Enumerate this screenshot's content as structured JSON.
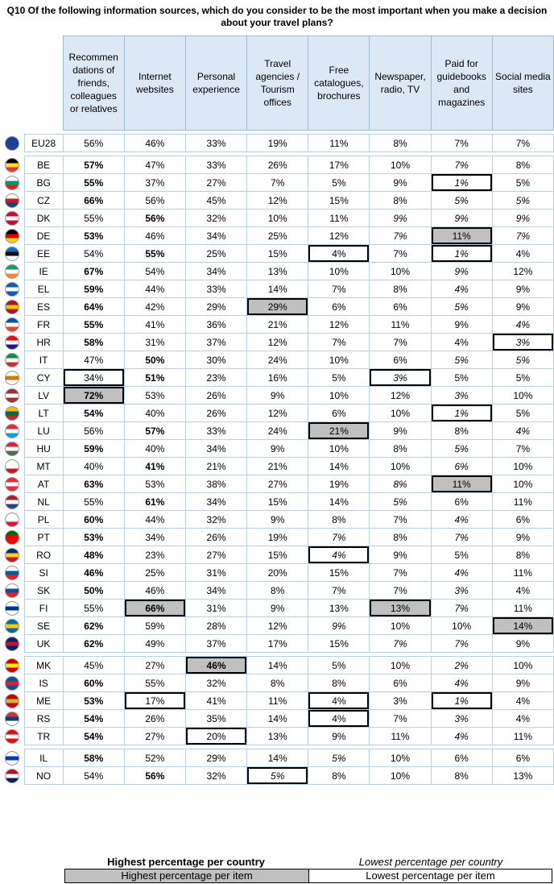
{
  "title": "Q10 Of the following information sources, which do you consider to be the most important when you make a decision about your travel plans?",
  "columns": [
    "Recommen dations of friends, colleagues or relatives",
    "Internet websites",
    "Personal experience",
    "Travel agencies / Tourism offices",
    "Free catalogues, brochures",
    "Newspaper, radio, TV",
    "Paid for guidebooks and magazines",
    "Social media sites"
  ],
  "colors": {
    "header_bg": "#dbe9f7",
    "highlight": "#c0c0c0",
    "border": "#b7cfe7"
  },
  "groups": [
    [
      {
        "code": "EU28",
        "values": [
          "56%",
          "46%",
          "33%",
          "19%",
          "11%",
          "8%",
          "7%",
          "7%"
        ],
        "flag": [
          "#1f3f99",
          "#ffcc00"
        ]
      }
    ],
    [
      {
        "code": "BE",
        "values": [
          "57%",
          "47%",
          "33%",
          "26%",
          "17%",
          "10%",
          "7%",
          "8%"
        ],
        "fmt": [
          "b",
          "",
          "",
          "",
          "",
          "",
          "i",
          ""
        ],
        "flag": [
          "#000000",
          "#fdda24",
          "#ef3340"
        ]
      },
      {
        "code": "BG",
        "values": [
          "55%",
          "37%",
          "27%",
          "7%",
          "5%",
          "9%",
          "1%",
          "5%"
        ],
        "fmt": [
          "b",
          "",
          "",
          "",
          "",
          "",
          "il",
          ""
        ],
        "flag": [
          "#ffffff",
          "#00966e",
          "#d62612"
        ]
      },
      {
        "code": "CZ",
        "values": [
          "66%",
          "56%",
          "45%",
          "12%",
          "15%",
          "8%",
          "5%",
          "5%"
        ],
        "fmt": [
          "b",
          "",
          "",
          "",
          "",
          "",
          "i",
          "i"
        ],
        "flag": [
          "#ffffff",
          "#d7141a",
          "#11457e"
        ]
      },
      {
        "code": "DK",
        "values": [
          "55%",
          "56%",
          "32%",
          "10%",
          "11%",
          "9%",
          "9%",
          "9%"
        ],
        "fmt": [
          "",
          "b",
          "",
          "",
          "",
          "i",
          "i",
          "i"
        ],
        "flag": [
          "#c60c30",
          "#ffffff",
          "#c60c30"
        ]
      },
      {
        "code": "DE",
        "values": [
          "53%",
          "46%",
          "34%",
          "25%",
          "12%",
          "7%",
          "11%",
          "7%"
        ],
        "fmt": [
          "b",
          "",
          "",
          "",
          "",
          "i",
          "h",
          "i"
        ],
        "flag": [
          "#000000",
          "#dd0000",
          "#ffce00"
        ]
      },
      {
        "code": "EE",
        "values": [
          "54%",
          "55%",
          "25%",
          "15%",
          "4%",
          "7%",
          "1%",
          "4%"
        ],
        "fmt": [
          "",
          "b",
          "",
          "",
          "l",
          "",
          "il",
          ""
        ],
        "flag": [
          "#0072ce",
          "#000000",
          "#ffffff"
        ]
      },
      {
        "code": "IE",
        "values": [
          "67%",
          "54%",
          "34%",
          "13%",
          "10%",
          "10%",
          "9%",
          "12%"
        ],
        "fmt": [
          "b",
          "",
          "",
          "",
          "",
          "",
          "i",
          ""
        ],
        "flag": [
          "#169b62",
          "#ffffff",
          "#ff883e"
        ]
      },
      {
        "code": "EL",
        "values": [
          "59%",
          "44%",
          "33%",
          "14%",
          "7%",
          "8%",
          "4%",
          "9%"
        ],
        "fmt": [
          "b",
          "",
          "",
          "",
          "",
          "",
          "i",
          ""
        ],
        "flag": [
          "#0d5eaf",
          "#ffffff",
          "#0d5eaf"
        ]
      },
      {
        "code": "ES",
        "values": [
          "64%",
          "42%",
          "29%",
          "29%",
          "6%",
          "6%",
          "5%",
          "9%"
        ],
        "fmt": [
          "b",
          "",
          "",
          "h",
          "",
          "",
          "i",
          ""
        ],
        "flag": [
          "#aa151b",
          "#f1bf00",
          "#aa151b"
        ]
      },
      {
        "code": "FR",
        "values": [
          "55%",
          "41%",
          "36%",
          "21%",
          "12%",
          "11%",
          "9%",
          "4%"
        ],
        "fmt": [
          "b",
          "",
          "",
          "",
          "",
          "",
          "",
          "i"
        ],
        "flag": [
          "#0055a4",
          "#ffffff",
          "#ef4135"
        ]
      },
      {
        "code": "HR",
        "values": [
          "58%",
          "31%",
          "37%",
          "12%",
          "7%",
          "7%",
          "4%",
          "3%"
        ],
        "fmt": [
          "b",
          "",
          "",
          "",
          "",
          "",
          "",
          "il"
        ],
        "flag": [
          "#ff0000",
          "#ffffff",
          "#171796"
        ]
      },
      {
        "code": "IT",
        "values": [
          "47%",
          "50%",
          "30%",
          "24%",
          "10%",
          "6%",
          "5%",
          "5%"
        ],
        "fmt": [
          "",
          "b",
          "",
          "",
          "",
          "",
          "i",
          "i"
        ],
        "flag": [
          "#009246",
          "#ffffff",
          "#ce2b37"
        ]
      },
      {
        "code": "CY",
        "values": [
          "34%",
          "51%",
          "23%",
          "16%",
          "5%",
          "3%",
          "5%",
          "5%"
        ],
        "fmt": [
          "l",
          "b",
          "",
          "",
          "",
          "il",
          "",
          ""
        ],
        "flag": [
          "#ffffff",
          "#d57800",
          "#ffffff"
        ]
      },
      {
        "code": "LV",
        "values": [
          "72%",
          "53%",
          "26%",
          "9%",
          "10%",
          "12%",
          "3%",
          "10%"
        ],
        "fmt": [
          "bh",
          "",
          "",
          "",
          "",
          "",
          "i",
          ""
        ],
        "flag": [
          "#9e3039",
          "#ffffff",
          "#9e3039"
        ]
      },
      {
        "code": "LT",
        "values": [
          "54%",
          "40%",
          "26%",
          "12%",
          "6%",
          "10%",
          "1%",
          "5%"
        ],
        "fmt": [
          "b",
          "",
          "",
          "",
          "",
          "",
          "il",
          ""
        ],
        "flag": [
          "#fdb913",
          "#006a44",
          "#c1272d"
        ]
      },
      {
        "code": "LU",
        "values": [
          "56%",
          "57%",
          "33%",
          "24%",
          "21%",
          "9%",
          "8%",
          "4%"
        ],
        "fmt": [
          "",
          "b",
          "",
          "",
          "h",
          "",
          "",
          "i"
        ],
        "flag": [
          "#ed2939",
          "#ffffff",
          "#00a1de"
        ]
      },
      {
        "code": "HU",
        "values": [
          "59%",
          "40%",
          "34%",
          "9%",
          "10%",
          "8%",
          "5%",
          "7%"
        ],
        "fmt": [
          "b",
          "",
          "",
          "",
          "",
          "",
          "i",
          ""
        ],
        "flag": [
          "#ce2939",
          "#ffffff",
          "#477050"
        ]
      },
      {
        "code": "MT",
        "values": [
          "40%",
          "41%",
          "21%",
          "21%",
          "14%",
          "10%",
          "6%",
          "10%"
        ],
        "fmt": [
          "",
          "b",
          "",
          "",
          "",
          "",
          "i",
          ""
        ],
        "flag": [
          "#ffffff",
          "#ffffff",
          "#cf142b"
        ]
      },
      {
        "code": "AT",
        "values": [
          "63%",
          "53%",
          "38%",
          "27%",
          "19%",
          "8%",
          "11%",
          "10%"
        ],
        "fmt": [
          "b",
          "",
          "",
          "",
          "",
          "i",
          "h",
          ""
        ],
        "flag": [
          "#ed2939",
          "#ffffff",
          "#ed2939"
        ]
      },
      {
        "code": "NL",
        "values": [
          "55%",
          "61%",
          "34%",
          "15%",
          "14%",
          "5%",
          "6%",
          "11%"
        ],
        "fmt": [
          "",
          "b",
          "",
          "",
          "",
          "i",
          "",
          ""
        ],
        "flag": [
          "#ae1c28",
          "#ffffff",
          "#21468b"
        ]
      },
      {
        "code": "PL",
        "values": [
          "60%",
          "44%",
          "32%",
          "9%",
          "8%",
          "7%",
          "4%",
          "6%"
        ],
        "fmt": [
          "b",
          "",
          "",
          "",
          "",
          "",
          "i",
          ""
        ],
        "flag": [
          "#ffffff",
          "#ffffff",
          "#dc143c"
        ]
      },
      {
        "code": "PT",
        "values": [
          "53%",
          "34%",
          "26%",
          "19%",
          "7%",
          "8%",
          "7%",
          "9%"
        ],
        "fmt": [
          "b",
          "",
          "",
          "",
          "i",
          "",
          "i",
          ""
        ],
        "flag": [
          "#006600",
          "#ff0000",
          "#ff0000"
        ]
      },
      {
        "code": "RO",
        "values": [
          "48%",
          "23%",
          "27%",
          "15%",
          "4%",
          "9%",
          "5%",
          "8%"
        ],
        "fmt": [
          "b",
          "",
          "",
          "",
          "il",
          "",
          "",
          ""
        ],
        "flag": [
          "#002b7f",
          "#fcd116",
          "#ce1126"
        ]
      },
      {
        "code": "SI",
        "values": [
          "46%",
          "25%",
          "31%",
          "20%",
          "15%",
          "7%",
          "4%",
          "11%"
        ],
        "fmt": [
          "b",
          "",
          "",
          "",
          "",
          "",
          "i",
          ""
        ],
        "flag": [
          "#ffffff",
          "#005da4",
          "#ed1c24"
        ]
      },
      {
        "code": "SK",
        "values": [
          "50%",
          "46%",
          "34%",
          "8%",
          "7%",
          "7%",
          "3%",
          "4%"
        ],
        "fmt": [
          "b",
          "",
          "",
          "",
          "",
          "",
          "i",
          ""
        ],
        "flag": [
          "#ffffff",
          "#0b4ea2",
          "#ee1c25"
        ]
      },
      {
        "code": "FI",
        "values": [
          "55%",
          "66%",
          "31%",
          "9%",
          "13%",
          "13%",
          "7%",
          "11%"
        ],
        "fmt": [
          "",
          "bh",
          "",
          "",
          "",
          "h",
          "i",
          ""
        ],
        "flag": [
          "#ffffff",
          "#003580",
          "#ffffff"
        ]
      },
      {
        "code": "SE",
        "values": [
          "62%",
          "59%",
          "28%",
          "12%",
          "9%",
          "10%",
          "10%",
          "14%"
        ],
        "fmt": [
          "b",
          "",
          "",
          "",
          "i",
          "",
          "",
          "h"
        ],
        "flag": [
          "#006aa7",
          "#fecc00",
          "#006aa7"
        ]
      },
      {
        "code": "UK",
        "values": [
          "62%",
          "49%",
          "37%",
          "17%",
          "15%",
          "7%",
          "7%",
          "9%"
        ],
        "fmt": [
          "b",
          "",
          "",
          "",
          "",
          "i",
          "i",
          ""
        ],
        "flag": [
          "#012169",
          "#c8102e",
          "#012169"
        ]
      }
    ],
    [
      {
        "code": "MK",
        "values": [
          "45%",
          "27%",
          "46%",
          "14%",
          "5%",
          "10%",
          "2%",
          "10%"
        ],
        "fmt": [
          "",
          "",
          "bh",
          "",
          "",
          "",
          "i",
          ""
        ],
        "flag": [
          "#d20000",
          "#ffe600",
          "#d20000"
        ]
      },
      {
        "code": "IS",
        "values": [
          "60%",
          "55%",
          "32%",
          "8%",
          "8%",
          "6%",
          "4%",
          "9%"
        ],
        "fmt": [
          "b",
          "",
          "",
          "",
          "",
          "",
          "i",
          ""
        ],
        "flag": [
          "#02529c",
          "#dc1e35",
          "#02529c"
        ]
      },
      {
        "code": "ME",
        "values": [
          "53%",
          "17%",
          "41%",
          "11%",
          "4%",
          "3%",
          "1%",
          "4%"
        ],
        "fmt": [
          "b",
          "l",
          "",
          "",
          "l",
          "",
          "il",
          ""
        ],
        "flag": [
          "#c40308",
          "#d4af37",
          "#c40308"
        ]
      },
      {
        "code": "RS",
        "values": [
          "54%",
          "26%",
          "35%",
          "14%",
          "4%",
          "7%",
          "3%",
          "4%"
        ],
        "fmt": [
          "b",
          "",
          "",
          "",
          "l",
          "",
          "i",
          ""
        ],
        "flag": [
          "#c6363c",
          "#0c4076",
          "#ffffff"
        ]
      },
      {
        "code": "TR",
        "values": [
          "54%",
          "27%",
          "20%",
          "13%",
          "9%",
          "11%",
          "4%",
          "11%"
        ],
        "fmt": [
          "b",
          "",
          "l",
          "",
          "",
          "",
          "i",
          ""
        ],
        "flag": [
          "#e30a17",
          "#ffffff",
          "#e30a17"
        ]
      }
    ],
    [
      {
        "code": "IL",
        "values": [
          "58%",
          "52%",
          "29%",
          "14%",
          "5%",
          "10%",
          "6%",
          "6%"
        ],
        "fmt": [
          "b",
          "",
          "",
          "",
          "i",
          "",
          "",
          ""
        ],
        "flag": [
          "#ffffff",
          "#0038b8",
          "#ffffff"
        ]
      },
      {
        "code": "NO",
        "values": [
          "54%",
          "56%",
          "32%",
          "5%",
          "8%",
          "10%",
          "8%",
          "13%"
        ],
        "fmt": [
          "",
          "b",
          "",
          "il",
          "",
          "",
          "",
          ""
        ],
        "flag": [
          "#ba0c2f",
          "#ffffff",
          "#00205b"
        ]
      }
    ]
  ],
  "legend": {
    "highest_country": "Highest percentage per country",
    "lowest_country": "Lowest percentage per country",
    "highest_item": "Highest percentage per item",
    "lowest_item": "Lowest percentage per item"
  }
}
